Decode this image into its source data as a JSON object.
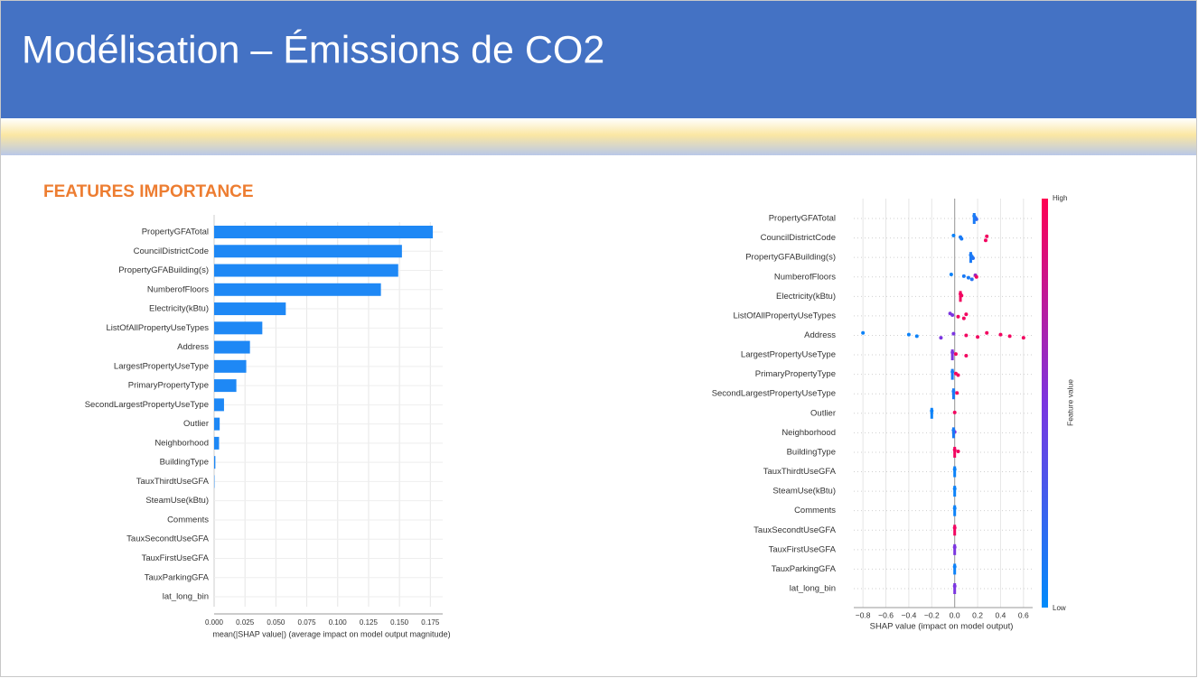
{
  "title": "Modélisation – Émissions de CO2",
  "section_title": "FEATURES IMPORTANCE",
  "chart_data": [
    {
      "type": "bar",
      "orientation": "horizontal",
      "categories": [
        "PropertyGFATotal",
        "CouncilDistrictCode",
        "PropertyGFABuilding(s)",
        "NumberofFloors",
        "Electricity(kBtu)",
        "ListOfAllPropertyUseTypes",
        "Address",
        "LargestPropertyUseType",
        "PrimaryPropertyType",
        "SecondLargestPropertyUseType",
        "Outlier",
        "Neighborhood",
        "BuildingType",
        "TauxThirdtUseGFA",
        "SteamUse(kBtu)",
        "Comments",
        "TauxSecondtUseGFA",
        "TauxFirstUseGFA",
        "TauxParkingGFA",
        "lat_long_bin"
      ],
      "values": [
        0.177,
        0.152,
        0.149,
        0.135,
        0.058,
        0.039,
        0.029,
        0.026,
        0.018,
        0.008,
        0.0045,
        0.004,
        0.001,
        0.0003,
        0,
        0,
        0,
        0,
        0,
        0
      ],
      "color": "#1e88f5",
      "xlim": [
        0,
        0.185
      ],
      "xticks": [
        {
          "value": 0,
          "label": "0.000"
        },
        0.025,
        {
          "value": 0.05,
          "label": "0.050"
        },
        0.075,
        {
          "value": 0.1,
          "label": "0.100"
        },
        0.125,
        {
          "value": 0.15,
          "label": "0.150"
        },
        0.175
      ],
      "xlabel": "mean(|SHAP value|) (average impact on model output magnitude)",
      "grid": true
    },
    {
      "type": "beeswarm",
      "categories": [
        "PropertyGFATotal",
        "CouncilDistrictCode",
        "PropertyGFABuilding(s)",
        "NumberofFloors",
        "Electricity(kBtu)",
        "ListOfAllPropertyUseTypes",
        "Address",
        "LargestPropertyUseType",
        "PrimaryPropertyType",
        "SecondLargestPropertyUseType",
        "Outlier",
        "Neighborhood",
        "BuildingType",
        "TauxThirdtUseGFA",
        "SteamUse(kBtu)",
        "Comments",
        "TauxSecondtUseGFA",
        "TauxFirstUseGFA",
        "TauxParkingGFA",
        "lat_long_bin"
      ],
      "values": [
        [
          0.17,
          0.18,
          0.19
        ],
        [
          -0.01,
          0.05,
          0.06,
          0.27,
          0.28
        ],
        [
          0.14,
          0.15,
          0.16
        ],
        [
          -0.03,
          0.08,
          0.12,
          0.15,
          0.18,
          0.19
        ],
        [
          0.05,
          0.06
        ],
        [
          -0.04,
          -0.02,
          0.03,
          0.08,
          0.1
        ],
        [
          -0.8,
          -0.4,
          -0.33,
          -0.12,
          -0.01,
          0.1,
          0.2,
          0.28,
          0.4,
          0.48,
          0.6
        ],
        [
          -0.02,
          0.01,
          0.1
        ],
        [
          -0.02,
          0.01,
          0.03
        ],
        [
          -0.01,
          0.02
        ],
        [
          -0.2,
          0.0
        ],
        [
          -0.01,
          0.0
        ],
        [
          0.0,
          0.03
        ],
        [
          0.0
        ],
        [
          0.0
        ],
        [
          0.0
        ],
        [
          0.0
        ],
        [
          0.0
        ],
        [
          0.0
        ],
        [
          0.0
        ]
      ],
      "feature_values": [
        [
          0.1,
          0.15,
          0.2
        ],
        [
          0.05,
          0.1,
          0.1,
          0.95,
          0.95
        ],
        [
          0.1,
          0.1,
          0.15
        ],
        [
          0.05,
          0.1,
          0.1,
          0.15,
          0.6,
          0.95
        ],
        [
          0.95,
          0.95
        ],
        [
          0.5,
          0.5,
          0.95,
          0.95,
          0.95
        ],
        [
          0.05,
          0.05,
          0.05,
          0.5,
          0.5,
          0.95,
          0.95,
          0.95,
          0.95,
          0.95,
          0.95
        ],
        [
          0.5,
          0.95,
          0.95
        ],
        [
          0.1,
          0.95,
          0.95
        ],
        [
          0.1,
          0.95
        ],
        [
          0.05,
          0.95
        ],
        [
          0.1,
          0.5
        ],
        [
          0.95,
          0.95
        ],
        [
          0.05
        ],
        [
          0.05
        ],
        [
          0.05
        ],
        [
          0.95
        ],
        [
          0.5
        ],
        [
          0.05
        ],
        [
          0.5
        ]
      ],
      "colormap": [
        "#008bfb",
        "#7b35e0",
        "#ff0052"
      ],
      "xlim": [
        -0.88,
        0.68
      ],
      "xticks": [
        {
          "value": -0.8,
          "label": "−0.8"
        },
        {
          "value": -0.6,
          "label": "−0.6"
        },
        {
          "value": -0.4,
          "label": "−0.4"
        },
        {
          "value": -0.2,
          "label": "−0.2"
        },
        {
          "value": 0,
          "label": "0.0"
        },
        0.2,
        0.4,
        0.6
      ],
      "xlabel": "SHAP value (impact on model output)",
      "colorbar_label": "Feature value",
      "colorbar_high": "High",
      "colorbar_low": "Low",
      "grid": true
    }
  ]
}
